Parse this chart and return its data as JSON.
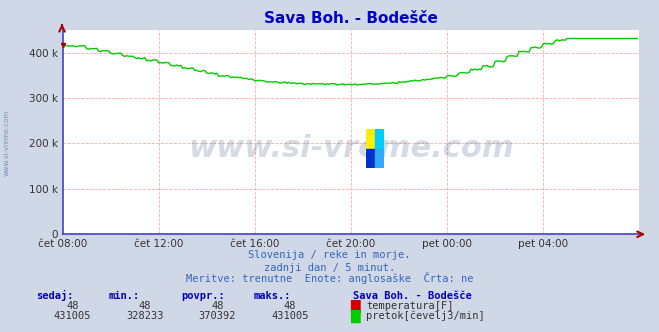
{
  "title": "Sava Boh. - Bodešče",
  "title_color": "#0000cc",
  "bg_color": "#d0d8e8",
  "plot_bg_color": "#ffffff",
  "grid_color": "#ffaaaa",
  "xlabel_ticks": [
    "čet 08:00",
    "čet 12:00",
    "čet 16:00",
    "čet 20:00",
    "pet 00:00",
    "pet 04:00"
  ],
  "ytick_labels": [
    "0",
    "100 k",
    "200 k",
    "300 k",
    "400 k"
  ],
  "ytick_vals": [
    0,
    100000,
    200000,
    300000,
    400000
  ],
  "ymin": 0,
  "ymax": 450000,
  "xmin": 0,
  "xmax": 288,
  "line_color": "#00cc00",
  "line_width": 1.0,
  "watermark": "www.si-vreme.com",
  "watermark_color": "#1a3a6e",
  "watermark_alpha": 0.18,
  "watermark_fontsize": 22,
  "subtitle1": "Slovenija / reke in morje.",
  "subtitle2": "zadnji dan / 5 minut.",
  "subtitle3": "Meritve: trenutne  Enote: anglosaške  Črta: ne",
  "subtitle_color": "#3366bb",
  "legend_title": "Sava Boh. - Bodešče",
  "legend_color": "#0000bb",
  "table_headers": [
    "sedaj:",
    "min.:",
    "povpr.:",
    "maks.:"
  ],
  "table_row1": [
    "48",
    "48",
    "48",
    "48"
  ],
  "table_row2": [
    "431005",
    "328233",
    "370392",
    "431005"
  ],
  "table_color": "#0000bb",
  "axis_color": "#4444bb",
  "arrow_color": "#aa0000",
  "sidebar_text": "www.si-vreme.com",
  "sidebar_color": "#5577aa"
}
